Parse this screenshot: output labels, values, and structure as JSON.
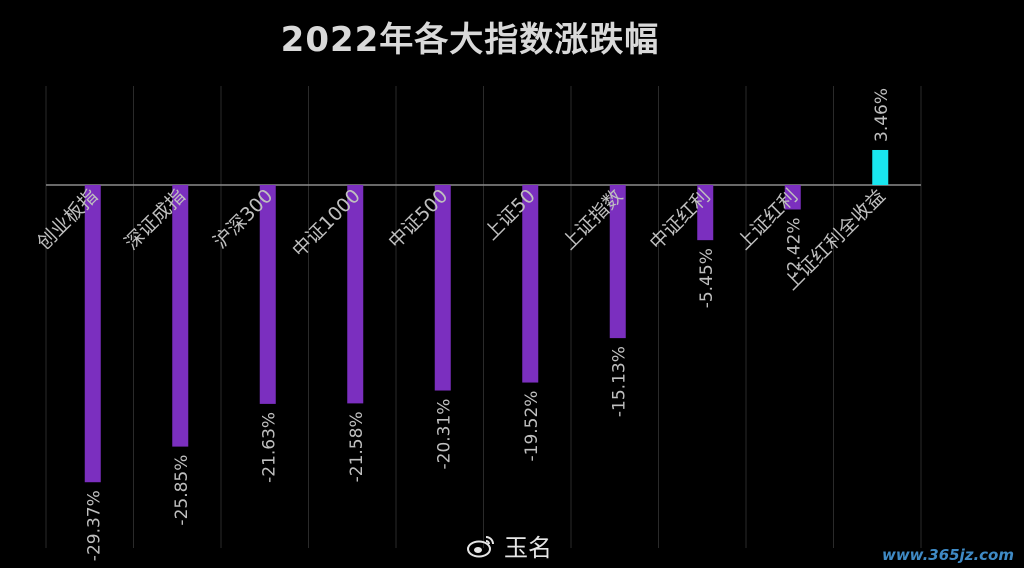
{
  "chart_data": {
    "type": "bar",
    "title": "2022年各大指数涨跌幅",
    "categories": [
      "创业板指",
      "深证成指",
      "沪深300",
      "中证1000",
      "中证500",
      "上证50",
      "上证指数",
      "中证红利",
      "上证红利",
      "上证红利全收益"
    ],
    "values": [
      -29.37,
      -25.85,
      -21.63,
      -21.58,
      -20.31,
      -19.52,
      -15.13,
      -5.45,
      -2.42,
      3.46
    ],
    "value_labels": [
      "-29.37%",
      "-25.85%",
      "-21.63%",
      "-21.58%",
      "-20.31%",
      "-19.52%",
      "-15.13%",
      "-5.45%",
      "-2.42%",
      "3.46%"
    ],
    "ylim": [
      -32,
      9
    ],
    "grid": "vertical",
    "colors": {
      "negative": "#7b2fbf",
      "positive": "#19e6ef",
      "text": "#bfbfbf",
      "grid": "#2a2a2a",
      "axis": "#8c8c8c"
    }
  },
  "watermark": {
    "text": "玉名",
    "icon": "weibo-icon"
  },
  "site_mark": "www.365jz.com"
}
